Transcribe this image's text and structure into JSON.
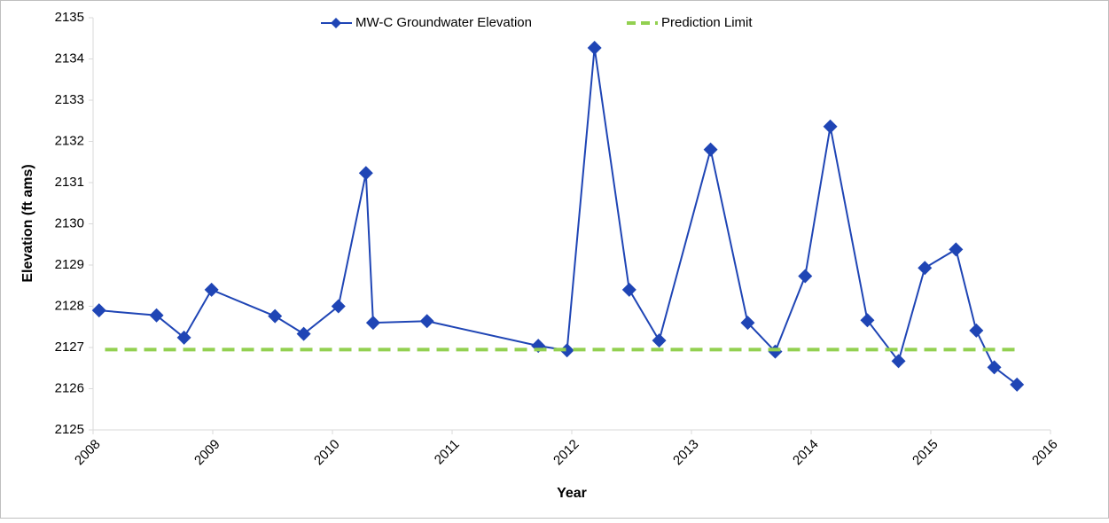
{
  "chart_data": {
    "type": "line",
    "x_label": "Year",
    "y_label": "Elevation (ft ams)",
    "xlim": [
      2008,
      2016
    ],
    "xticks": [
      2008,
      2009,
      2010,
      2011,
      2012,
      2013,
      2014,
      2015,
      2016
    ],
    "ylim": [
      2125,
      2135
    ],
    "yticks": [
      2125,
      2126,
      2127,
      2128,
      2129,
      2130,
      2131,
      2132,
      2133,
      2134,
      2135
    ],
    "grid": false,
    "series": [
      {
        "name": "MW-C Groundwater Elevation",
        "color": "#1f45b5",
        "style": "solid",
        "marker": "diamond",
        "x": [
          2008.05,
          2008.53,
          2008.76,
          2008.99,
          2009.52,
          2009.76,
          2010.05,
          2010.28,
          2010.34,
          2010.79,
          2011.72,
          2011.96,
          2012.19,
          2012.48,
          2012.73,
          2013.16,
          2013.47,
          2013.7,
          2013.95,
          2014.16,
          2014.47,
          2014.73,
          2014.95,
          2015.21,
          2015.38,
          2015.53,
          2015.72
        ],
        "values": [
          2127.9,
          2127.78,
          2127.24,
          2128.4,
          2127.76,
          2127.33,
          2128.0,
          2131.23,
          2127.6,
          2127.64,
          2127.04,
          2126.93,
          2134.27,
          2128.4,
          2127.17,
          2131.8,
          2127.6,
          2126.9,
          2128.73,
          2132.36,
          2127.66,
          2126.67,
          2128.93,
          2129.38,
          2127.41,
          2126.52,
          2126.1
        ]
      },
      {
        "name": "Prediction Limit",
        "color": "#92d050",
        "style": "dashed",
        "marker": "none",
        "x": [
          2008.1,
          2015.72
        ],
        "values": [
          2126.95,
          2126.95
        ]
      }
    ]
  }
}
